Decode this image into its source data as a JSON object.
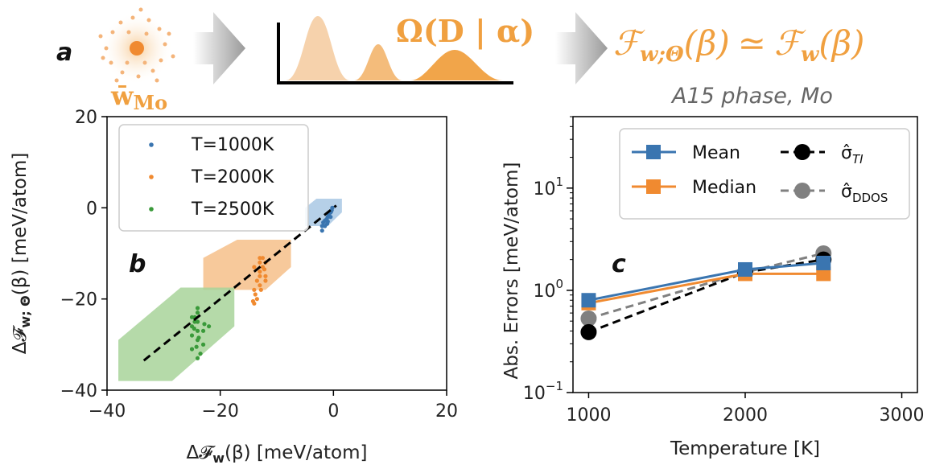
{
  "header": {
    "panel_a": "a",
    "wbar_label_main": "w̄",
    "wbar_label_sub": "Mo",
    "omega_label": "Ω(D | α)",
    "free_energy_left": "ℱ",
    "free_energy_left_sub": "w;Θ",
    "free_energy_arg": "(β)",
    "approx_symbol": "≃",
    "free_energy_right": "ℱ",
    "free_energy_right_sub": "w",
    "subtitle": "A15 phase, Mo",
    "accent_color": "#f0a040"
  },
  "chart_data": [
    {
      "type": "scatter",
      "panel_label": "b",
      "xlabel_main": "Δ𝓕",
      "xlabel_sub": "w",
      "xlabel_tail": "(β) [meV/atom]",
      "ylabel_main": "Δ𝓕",
      "ylabel_sub": "w; Θ",
      "ylabel_tail": "(β) [meV/atom]",
      "xlim": [
        -40,
        20
      ],
      "ylim": [
        -40,
        20
      ],
      "xticks": [
        -40,
        -20,
        0,
        20
      ],
      "yticks": [
        -40,
        -20,
        0,
        20
      ],
      "xtick_labels": [
        "−40",
        "−20",
        "0",
        "20"
      ],
      "ytick_labels": [
        "−40",
        "−20",
        "0",
        "20"
      ],
      "diagonal": {
        "x": [
          -33.5,
          0.5
        ],
        "y": [
          -33.5,
          0.5
        ]
      },
      "series": [
        {
          "name": "T=1000K",
          "color": "#3a75b0",
          "band_color": "#9dc0e0",
          "band": [
            [
              -5,
              0
            ],
            [
              -3,
              2
            ],
            [
              1.5,
              2
            ],
            [
              1.5,
              -1
            ],
            [
              -1,
              -4
            ],
            [
              -5,
              -4
            ]
          ],
          "points": [
            [
              -2,
              -5
            ],
            [
              -2,
              -4
            ],
            [
              -1.5,
              -4
            ],
            [
              -1,
              -2
            ],
            [
              -1,
              -3
            ],
            [
              -0.5,
              -1
            ],
            [
              -0.3,
              -0.5
            ],
            [
              -0.2,
              0
            ],
            [
              -0.5,
              -2
            ],
            [
              -1.2,
              -2.5
            ],
            [
              -1.8,
              -3.2
            ],
            [
              -0.8,
              -1.5
            ],
            [
              -0.4,
              -0.8
            ],
            [
              -1.5,
              -2.8
            ],
            [
              -1.1,
              -3.5
            ]
          ]
        },
        {
          "name": "T=2000K",
          "color": "#f08a30",
          "band_color": "#f6c08a",
          "band": [
            [
              -23,
              -18
            ],
            [
              -23,
              -11
            ],
            [
              -17,
              -7
            ],
            [
              -7.5,
              -7
            ],
            [
              -7.5,
              -13
            ],
            [
              -12,
              -18
            ]
          ],
          "points": [
            [
              -13,
              -11
            ],
            [
              -13,
              -12
            ],
            [
              -12.5,
              -13
            ],
            [
              -13,
              -14
            ],
            [
              -12,
              -15
            ],
            [
              -13.5,
              -16
            ],
            [
              -14,
              -18
            ],
            [
              -13.5,
              -20
            ],
            [
              -14,
              -21
            ],
            [
              -12,
              -16
            ],
            [
              -13,
              -17
            ],
            [
              -12.5,
              -11
            ],
            [
              -14,
              -13
            ],
            [
              -12,
              -12
            ],
            [
              -13,
              -15
            ],
            [
              -13.8,
              -19
            ],
            [
              -12.2,
              -13.5
            ],
            [
              -12.8,
              -18
            ],
            [
              -14.2,
              -20.5
            ]
          ]
        },
        {
          "name": "T=2500K",
          "color": "#3a9a3a",
          "band_color": "#a8d49a",
          "band": [
            [
              -38,
              -38
            ],
            [
              -38,
              -29
            ],
            [
              -27,
              -17.5
            ],
            [
              -17.5,
              -17.5
            ],
            [
              -17.5,
              -26
            ],
            [
              -28.5,
              -38
            ]
          ],
          "points": [
            [
              -24,
              -22
            ],
            [
              -24.5,
              -24
            ],
            [
              -25,
              -26
            ],
            [
              -24,
              -27
            ],
            [
              -23,
              -27
            ],
            [
              -24,
              -29
            ],
            [
              -25,
              -31
            ],
            [
              -24,
              -33
            ],
            [
              -23.5,
              -32
            ],
            [
              -25,
              -28
            ],
            [
              -24,
              -23
            ],
            [
              -24.5,
              -25
            ],
            [
              -23,
              -30
            ],
            [
              -25,
              -24
            ],
            [
              -22,
              -26
            ],
            [
              -24,
              -25
            ],
            [
              -24.2,
              -30.5
            ],
            [
              -23.8,
              -28.5
            ],
            [
              -24.6,
              -26.5
            ],
            [
              -22.8,
              -25.5
            ]
          ]
        }
      ]
    },
    {
      "type": "line",
      "panel_label": "c",
      "xlabel": "Temperature [K]",
      "ylabel": "Abs. Errors [meV/atom]",
      "yscale": "log",
      "xlim": [
        900,
        3100
      ],
      "ylim": [
        0.1,
        50
      ],
      "xticks": [
        1000,
        2000,
        3000
      ],
      "xtick_labels": [
        "1000",
        "2000",
        "3000"
      ],
      "ytick_base": "10",
      "yticks": [
        {
          "value": 0.1,
          "exp": "−1"
        },
        {
          "value": 1,
          "exp": "0"
        },
        {
          "value": 10,
          "exp": "1"
        }
      ],
      "x": [
        1000,
        2000,
        2500
      ],
      "series": [
        {
          "name": "Mean",
          "color": "#3a75b0",
          "marker": "square",
          "dashed": false,
          "values": [
            0.8,
            1.6,
            1.85
          ]
        },
        {
          "name": "Median",
          "color": "#f08a30",
          "marker": "square",
          "dashed": false,
          "values": [
            0.75,
            1.45,
            1.45
          ]
        },
        {
          "name": "σ̂",
          "name_sub": "TI",
          "color": "#000000",
          "marker": "circle",
          "dashed": true,
          "values": [
            0.39,
            1.5,
            2.0
          ]
        },
        {
          "name": "σ̂",
          "name_sub": "DDOS",
          "color": "#808080",
          "marker": "circle",
          "dashed": true,
          "values": [
            0.53,
            1.5,
            2.3
          ]
        }
      ]
    }
  ]
}
